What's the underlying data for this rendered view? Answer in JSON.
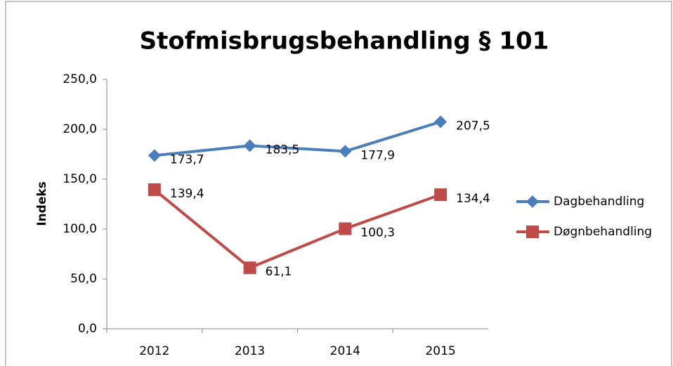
{
  "chart_data": {
    "type": "line",
    "title": "Stofmisbrugsbehandling § 101",
    "y_label": "Indeks",
    "categories": [
      "2012",
      "2013",
      "2014",
      "2015"
    ],
    "series": [
      {
        "name": "Dagbehandling",
        "color": "#4a7ebb",
        "marker": "diamond",
        "values": [
          173.7,
          183.5,
          177.9,
          207.5
        ],
        "value_labels": [
          "173,7",
          "183,5",
          "177,9",
          "207,5"
        ]
      },
      {
        "name": "Døgnbehandling",
        "color": "#be4b48",
        "marker": "square",
        "values": [
          139.4,
          61.1,
          100.3,
          134.4
        ],
        "value_labels": [
          "139,4",
          "61,1",
          "100,3",
          "134,4"
        ]
      }
    ],
    "ylim": [
      0,
      250
    ],
    "yticks": [
      {
        "value": 0,
        "label": "0,0"
      },
      {
        "value": 50,
        "label": "50,0"
      },
      {
        "value": 100,
        "label": "100,0"
      },
      {
        "value": 150,
        "label": "150,0"
      },
      {
        "value": 200,
        "label": "200,0"
      },
      {
        "value": 250,
        "label": "250,0"
      }
    ],
    "legend": "right"
  }
}
